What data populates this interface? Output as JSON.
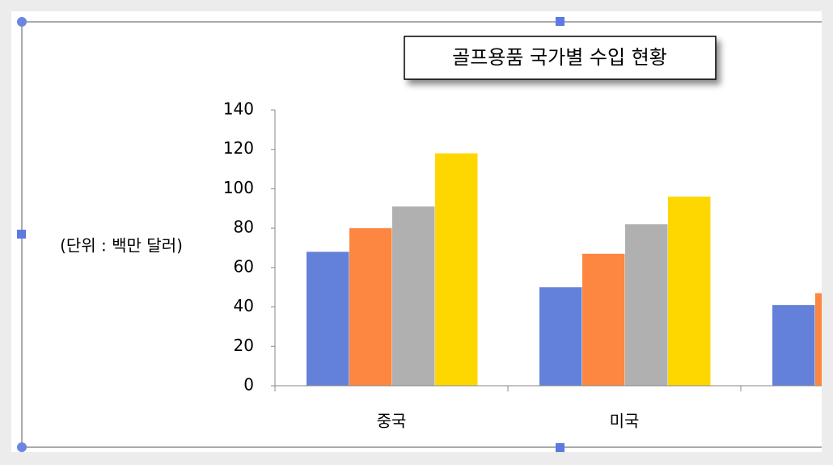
{
  "chart_data": {
    "type": "bar",
    "title": "골프용품 국가별 수입 현황",
    "y_unit_label": "(단위 : 백만 달러)",
    "categories": [
      "중국",
      "미국",
      null
    ],
    "series": [
      {
        "color": "#6381d8",
        "values": [
          68,
          50,
          41
        ]
      },
      {
        "color": "#fd8640",
        "values": [
          80,
          67,
          47
        ]
      },
      {
        "color": "#b0b0b0",
        "values": [
          91,
          82,
          null
        ]
      },
      {
        "color": "#fed700",
        "values": [
          118,
          96,
          null
        ]
      }
    ],
    "ylim": [
      0,
      140
    ],
    "yticks": [
      0,
      20,
      40,
      60,
      80,
      100,
      120,
      140
    ]
  }
}
